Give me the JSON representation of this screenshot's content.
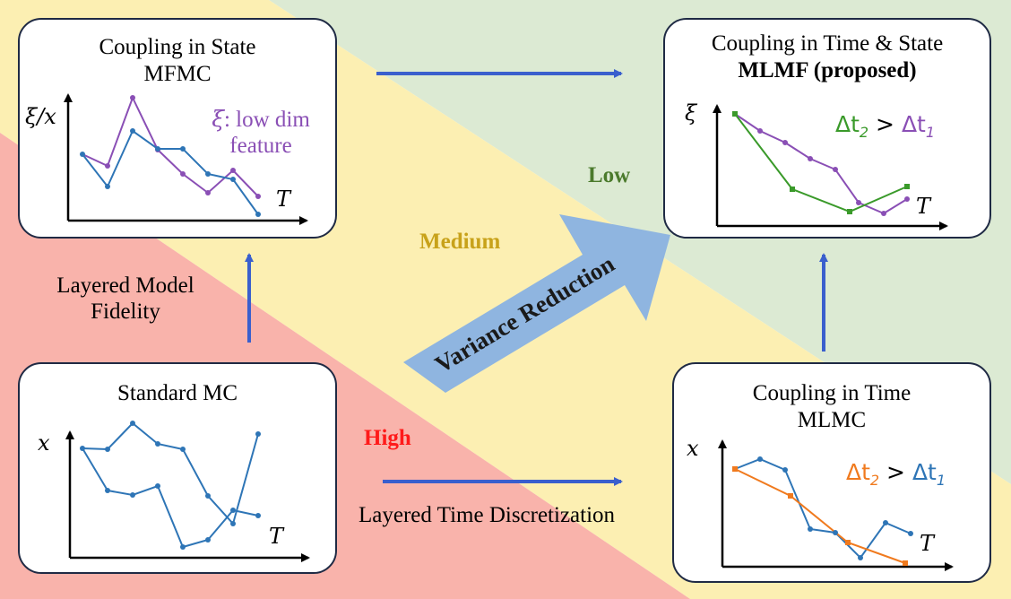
{
  "zones": {
    "high": {
      "label": "High",
      "color": "#ff1a1a"
    },
    "medium": {
      "label": "Medium",
      "color": "#c8a21a"
    },
    "low": {
      "label": "Low",
      "color": "#4b7a2c"
    }
  },
  "background": {
    "red": "#f9b3ab",
    "yellow": "#fcefb2",
    "green": "#dcead3"
  },
  "arrow_text": "Variance Reduction",
  "side_labels": {
    "layered_model_line1": "Layered Model",
    "layered_model_line2": "Fidelity",
    "layered_time": "Layered Time Discretization"
  },
  "panels": {
    "mfmc": {
      "title1": "Coupling in State",
      "title2": "MFMC",
      "ylabel": "ξ/x",
      "xlabel": "T",
      "legend_sym": "ξ",
      "legend_rest": ": low dim",
      "legend_line2": "feature"
    },
    "mlmf": {
      "title1": "Coupling in Time & State",
      "title2": "MLMF (proposed)",
      "ylabel": "ξ",
      "xlabel": "T",
      "legend_a": "Δt",
      "legend_a_sub": "2",
      "legend_op": " > ",
      "legend_b": "Δt",
      "legend_b_sub": "1"
    },
    "mc": {
      "title1": "Standard MC",
      "ylabel": "x",
      "xlabel": "T"
    },
    "mlmc": {
      "title1": "Coupling in Time",
      "title2": "MLMC",
      "ylabel": "x",
      "xlabel": "T",
      "legend_a": "Δt",
      "legend_a_sub": "2",
      "legend_op": " > ",
      "legend_b": "Δt",
      "legend_b_sub": "1"
    }
  },
  "colors": {
    "blue": "#2e75b6",
    "purple": "#8a4fb5",
    "green": "#3a9a2a",
    "orange": "#f07a1e",
    "arrow": "#3a5fcd",
    "big_arrow": "#8fb5e0"
  }
}
